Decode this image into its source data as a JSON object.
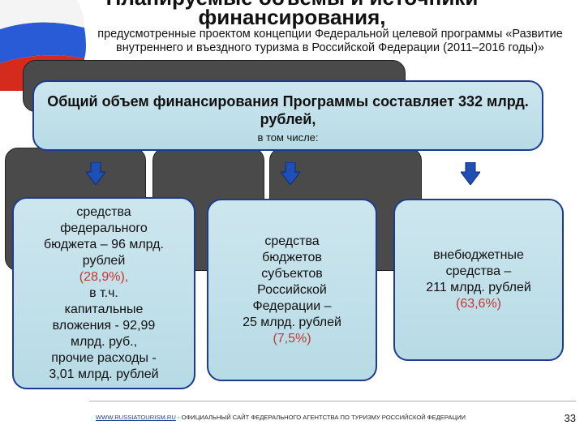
{
  "header": {
    "title_line1": "Планируемые объемы и источники",
    "title_line2": "финансирования,",
    "subtitle": "предусмотренные проектом концепции Федеральной целевой программы «Развитие внутреннего и въездного туризма в Российской Федерации (2011–2016 годы)»"
  },
  "summary": {
    "text": "Общий объем финансирования Программы составляет 332 млрд. рублей,",
    "subtext": "в том числе:"
  },
  "sources": [
    {
      "lines": [
        "средства",
        "федерального",
        "бюджета – 96 млрд.",
        "рублей"
      ],
      "percent": "(28,9%),",
      "extra": [
        "в т.ч.",
        "капитальные",
        "вложения - 92,99",
        "млрд. руб.,",
        "прочие расходы -",
        "3,01 млрд. рублей"
      ]
    },
    {
      "lines": [
        "средства",
        "бюджетов",
        "субъектов",
        "Российской",
        "Федерации –",
        "25 млрд. рублей"
      ],
      "percent": "(7,5%)"
    },
    {
      "lines": [
        "внебюджетные",
        "средства –",
        "211 млрд. рублей"
      ],
      "percent": "(63,6%)"
    }
  ],
  "footer": {
    "link_text": "WWW.RUSSIATOURISM.RU",
    "text": " - ОФИЦИАЛЬНЫЙ САЙТ ФЕДЕРАЛЬНОГО АГЕНТСТВА ПО ТУРИЗМУ РОССИЙСКОЙ ФЕДЕРАЦИИ",
    "page_number": "33"
  },
  "colors": {
    "box_fill": "#c5e3ec",
    "box_border": "#1f3b8f",
    "percent": "#c0392b",
    "arrow": "#1f4fb4"
  },
  "icons": [
    "russian-flag-icon",
    "arrow-down-icon"
  ]
}
